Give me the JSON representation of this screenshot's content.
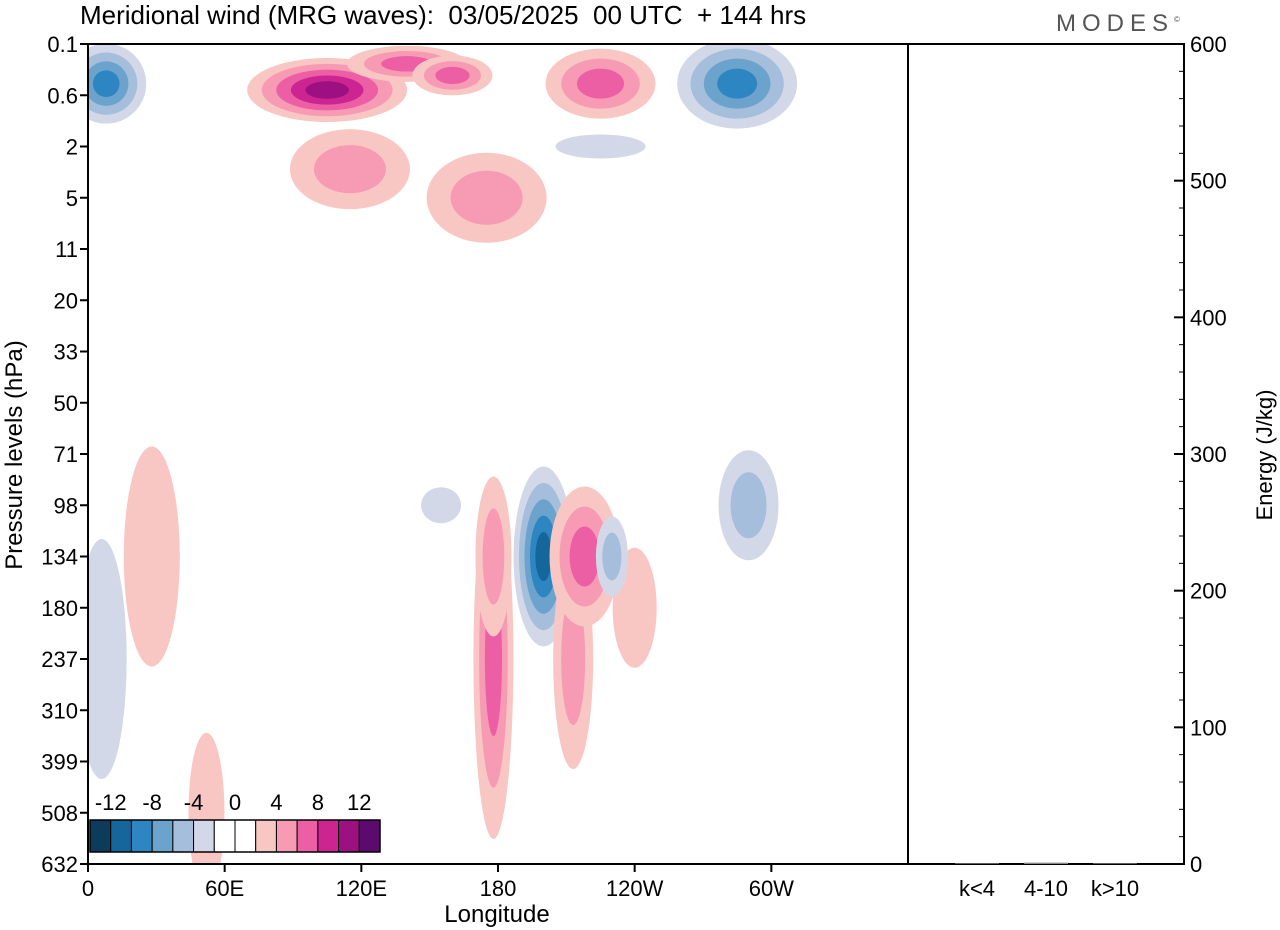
{
  "title": "Meridional wind (MRG waves):  03/05/2025  00 UTC  + 144 hrs",
  "logo": "MODES",
  "chart_data": [
    {
      "type": "heatmap",
      "xlabel": "Longitude",
      "ylabel": "Pressure levels (hPa)",
      "x_ticks": [
        "0",
        "60E",
        "120E",
        "180",
        "120W",
        "60W"
      ],
      "y_ticks": [
        "0.1",
        "0.6",
        "2",
        "5",
        "11",
        "20",
        "33",
        "50",
        "71",
        "98",
        "134",
        "180",
        "237",
        "310",
        "399",
        "508",
        "632"
      ],
      "colorbar": {
        "labels": [
          "-12",
          "-8",
          "-4",
          "0",
          "4",
          "8",
          "12"
        ],
        "levels": [
          -14,
          -12,
          -10,
          -8,
          -6,
          -4,
          -2,
          2,
          4,
          6,
          8,
          10,
          12,
          14
        ],
        "colors": [
          "#0d3b5c",
          "#14669b",
          "#2d86c1",
          "#6ba3cc",
          "#a5bedb",
          "#d3d8e8",
          "#ffffff",
          "#ffffff",
          "#f8c6c3",
          "#f79ab4",
          "#ec5fa5",
          "#cc2592",
          "#9d1081",
          "#5c0a6e"
        ]
      },
      "features": [
        {
          "lon": 8,
          "level": "0.4",
          "value": -10
        },
        {
          "lon": 105,
          "level": "0.5",
          "value": 12
        },
        {
          "lon": 140,
          "level": "0.2",
          "value": 8
        },
        {
          "lon": 160,
          "level": "0.3",
          "value": 8
        },
        {
          "lon": 115,
          "level": "3",
          "value": 6
        },
        {
          "lon": 175,
          "level": "5",
          "value": 6
        },
        {
          "lon": 225,
          "level": "0.4",
          "value": 8
        },
        {
          "lon": 285,
          "level": "0.4",
          "value": -10
        },
        {
          "lon": 225,
          "level": "2",
          "value": -4
        },
        {
          "lon": 155,
          "level": "98",
          "value": -4
        },
        {
          "lon": 178,
          "level": "237",
          "value": 8
        },
        {
          "lon": 178,
          "level": "134",
          "value": 6
        },
        {
          "lon": 200,
          "level": "134",
          "value": -12
        },
        {
          "lon": 213,
          "level": "237",
          "value": 6
        },
        {
          "lon": 218,
          "level": "134",
          "value": 8
        },
        {
          "lon": 240,
          "level": "180",
          "value": 4
        },
        {
          "lon": 230,
          "level": "134",
          "value": -6
        },
        {
          "lon": 290,
          "level": "98",
          "value": -6
        },
        {
          "lon": 28,
          "level": "134",
          "value": 4
        },
        {
          "lon": 6,
          "level": "237",
          "value": -4
        },
        {
          "lon": 52,
          "level": "508",
          "value": 4
        }
      ]
    },
    {
      "type": "bar",
      "ylabel": "Energy (J/kg)",
      "categories": [
        "k<4",
        "4-10",
        "k>10"
      ],
      "values": [
        0.5,
        1,
        0.5
      ],
      "ylim": [
        0,
        600
      ],
      "y_ticks": [
        "0",
        "100",
        "200",
        "300",
        "400",
        "500",
        "600"
      ]
    }
  ]
}
